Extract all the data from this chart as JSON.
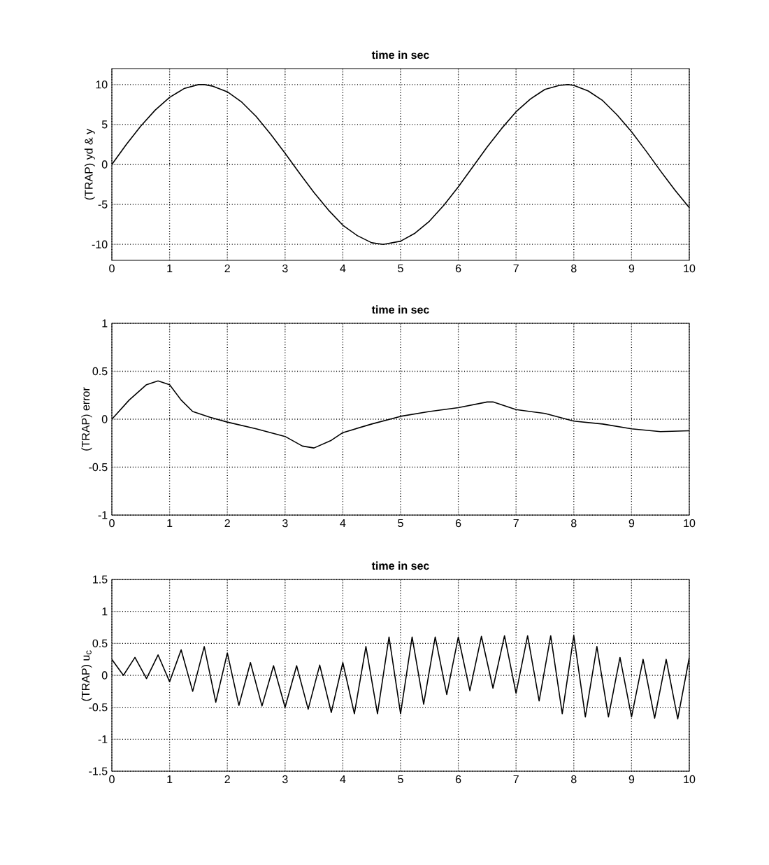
{
  "chart_data": [
    {
      "type": "line",
      "title": "time in sec",
      "ylabel": "(TRAP) yd & y",
      "color": "#000000",
      "grid": true,
      "x": [
        0,
        0.25,
        0.5,
        0.75,
        1,
        1.25,
        1.5,
        1.6,
        1.75,
        2,
        2.25,
        2.5,
        2.75,
        3,
        3.25,
        3.5,
        3.75,
        4,
        4.25,
        4.5,
        4.7,
        5,
        5.25,
        5.5,
        5.75,
        6,
        6.25,
        6.5,
        6.75,
        7,
        7.25,
        7.5,
        7.75,
        7.9,
        8,
        8.25,
        8.5,
        8.75,
        9,
        9.25,
        9.5,
        9.75,
        10
      ],
      "values": [
        0,
        2.5,
        4.8,
        6.8,
        8.4,
        9.5,
        10,
        10,
        9.8,
        9.1,
        7.8,
        6,
        3.8,
        1.4,
        -1.1,
        -3.5,
        -5.7,
        -7.6,
        -8.9,
        -9.8,
        -10,
        -9.6,
        -8.6,
        -7.1,
        -5.1,
        -2.8,
        -0.3,
        2.2,
        4.5,
        6.6,
        8.2,
        9.4,
        9.9,
        10,
        9.9,
        9.2,
        8,
        6.2,
        4.1,
        1.7,
        -0.8,
        -3.2,
        -5.4
      ],
      "xlim": [
        0,
        10
      ],
      "ylim": [
        -12,
        12
      ],
      "xticks": [
        0,
        1,
        2,
        3,
        4,
        5,
        6,
        7,
        8,
        9,
        10
      ],
      "yticks": [
        -10,
        -5,
        0,
        5,
        10
      ]
    },
    {
      "type": "line",
      "title": "time in sec",
      "ylabel": "(TRAP) error",
      "color": "#000000",
      "grid": true,
      "x": [
        0,
        0.3,
        0.6,
        0.8,
        1,
        1.2,
        1.4,
        1.7,
        2,
        2.5,
        3,
        3.3,
        3.5,
        3.8,
        4,
        4.5,
        5,
        5.5,
        6,
        6.5,
        6.6,
        7,
        7.5,
        8,
        8.5,
        9,
        9.5,
        10
      ],
      "values": [
        0,
        0.2,
        0.36,
        0.4,
        0.36,
        0.2,
        0.08,
        0.02,
        -0.03,
        -0.1,
        -0.18,
        -0.28,
        -0.3,
        -0.22,
        -0.14,
        -0.05,
        0.03,
        0.08,
        0.12,
        0.18,
        0.18,
        0.1,
        0.06,
        -0.02,
        -0.05,
        -0.1,
        -0.13,
        -0.12
      ],
      "xlim": [
        0,
        10
      ],
      "ylim": [
        -1,
        1
      ],
      "xticks": [
        0,
        1,
        2,
        3,
        4,
        5,
        6,
        7,
        8,
        9,
        10
      ],
      "yticks": [
        -1,
        -0.5,
        0,
        0.5,
        1
      ]
    },
    {
      "type": "line",
      "title": "time in sec",
      "ylabel": "(TRAP) u$_{c}$",
      "color": "#000000",
      "grid": true,
      "x": [
        0,
        0.2,
        0.4,
        0.6,
        0.8,
        1,
        1.2,
        1.4,
        1.6,
        1.8,
        2,
        2.2,
        2.4,
        2.6,
        2.8,
        3,
        3.2,
        3.4,
        3.6,
        3.8,
        4,
        4.2,
        4.4,
        4.6,
        4.8,
        5,
        5.2,
        5.4,
        5.6,
        5.8,
        6,
        6.2,
        6.4,
        6.6,
        6.8,
        7,
        7.2,
        7.4,
        7.6,
        7.8,
        8,
        8.2,
        8.4,
        8.6,
        8.8,
        9,
        9.2,
        9.4,
        9.6,
        9.8,
        10
      ],
      "values": [
        0.25,
        0,
        0.28,
        -0.05,
        0.32,
        -0.1,
        0.4,
        -0.25,
        0.45,
        -0.42,
        0.35,
        -0.47,
        0.2,
        -0.48,
        0.15,
        -0.5,
        0.15,
        -0.53,
        0.16,
        -0.58,
        0.2,
        -0.6,
        0.45,
        -0.6,
        0.6,
        -0.6,
        0.6,
        -0.45,
        0.6,
        -0.3,
        0.6,
        -0.24,
        0.61,
        -0.2,
        0.62,
        -0.28,
        0.62,
        -0.4,
        0.62,
        -0.6,
        0.62,
        -0.65,
        0.45,
        -0.65,
        0.28,
        -0.65,
        0.25,
        -0.67,
        0.25,
        -0.68,
        0.28
      ],
      "xlim": [
        0,
        10
      ],
      "ylim": [
        -1.5,
        1.5
      ],
      "xticks": [
        0,
        1,
        2,
        3,
        4,
        5,
        6,
        7,
        8,
        9,
        10
      ],
      "yticks": [
        -1.5,
        -1,
        -0.5,
        0,
        0.5,
        1,
        1.5
      ]
    }
  ]
}
